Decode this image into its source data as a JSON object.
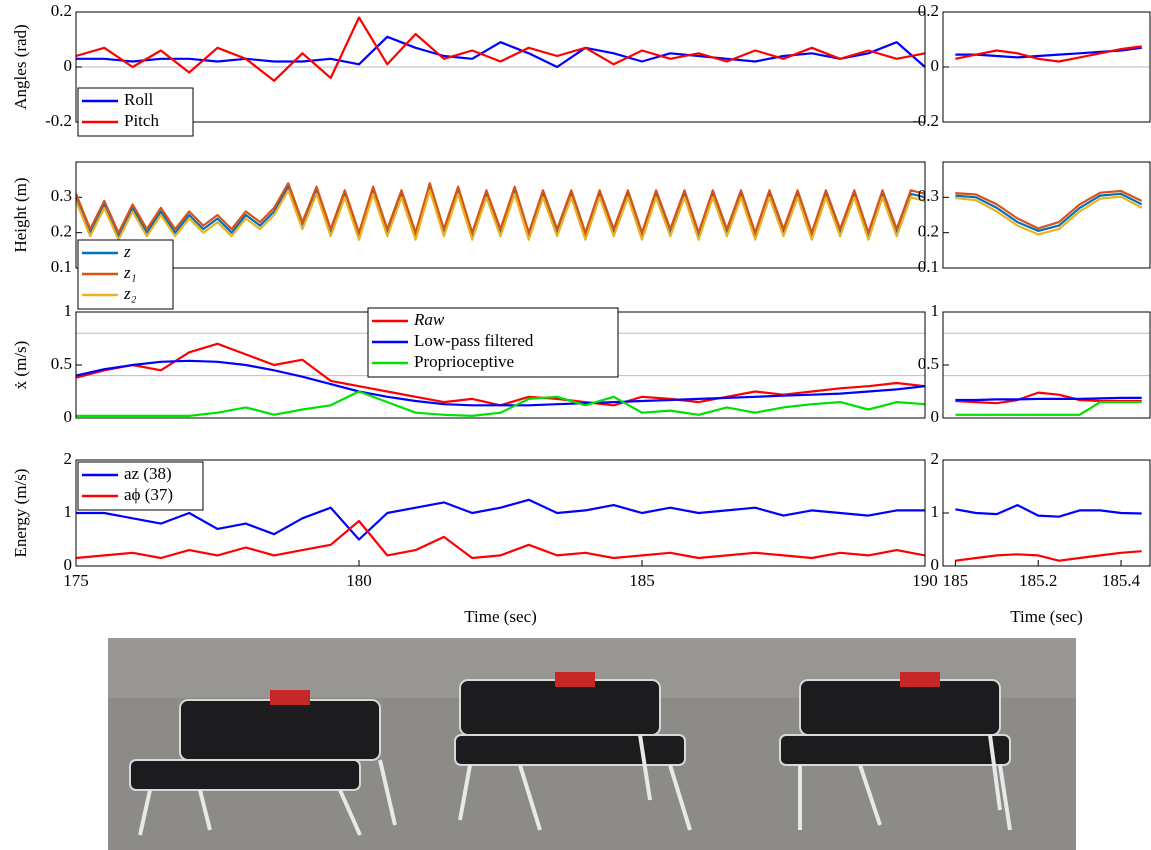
{
  "chart_data": [
    {
      "type": "line",
      "ylabel": "Angles (rad)",
      "xlim": [
        175,
        190
      ],
      "ylim": [
        -0.2,
        0.2
      ],
      "yticks": [
        -0.2,
        0,
        0.2
      ],
      "hlines": [
        0
      ],
      "legend": "lower left",
      "x": [
        175,
        175.5,
        176,
        176.5,
        177,
        177.5,
        178,
        178.5,
        179,
        179.5,
        180,
        180.5,
        181,
        181.5,
        182,
        182.5,
        183,
        183.5,
        184,
        184.5,
        185,
        185.5,
        186,
        186.5,
        187,
        187.5,
        188,
        188.5,
        189,
        189.5,
        190
      ],
      "series": [
        {
          "name": "Roll",
          "color": "#0000ff",
          "values": [
            0.03,
            0.03,
            0.02,
            0.03,
            0.03,
            0.02,
            0.03,
            0.02,
            0.02,
            0.03,
            0.01,
            0.11,
            0.07,
            0.04,
            0.03,
            0.09,
            0.05,
            0.0,
            0.07,
            0.05,
            0.02,
            0.05,
            0.04,
            0.03,
            0.02,
            0.04,
            0.05,
            0.03,
            0.05,
            0.09,
            0.0
          ]
        },
        {
          "name": "Pitch",
          "color": "#ff0000",
          "values": [
            0.04,
            0.07,
            0.0,
            0.06,
            -0.02,
            0.07,
            0.03,
            -0.05,
            0.05,
            -0.04,
            0.18,
            0.01,
            0.12,
            0.03,
            0.06,
            0.02,
            0.07,
            0.04,
            0.07,
            0.01,
            0.06,
            0.03,
            0.05,
            0.02,
            0.06,
            0.03,
            0.07,
            0.03,
            0.06,
            0.03,
            0.05
          ]
        }
      ]
    },
    {
      "type": "line",
      "xlim": [
        184.97,
        185.47
      ],
      "ylim": [
        -0.2,
        0.2
      ],
      "yticks": [
        -0.2,
        0,
        0.2
      ],
      "hlines": [
        0
      ],
      "x": [
        185,
        185.05,
        185.1,
        185.15,
        185.2,
        185.25,
        185.3,
        185.35,
        185.4,
        185.45
      ],
      "series": [
        {
          "color": "#0000ff",
          "values": [
            0.045,
            0.045,
            0.04,
            0.035,
            0.04,
            0.045,
            0.05,
            0.055,
            0.06,
            0.07
          ]
        },
        {
          "color": "#ff0000",
          "values": [
            0.03,
            0.045,
            0.06,
            0.05,
            0.03,
            0.02,
            0.035,
            0.05,
            0.065,
            0.075
          ]
        }
      ]
    },
    {
      "type": "line",
      "ylabel": "Height (m)",
      "xlim": [
        175,
        190
      ],
      "ylim": [
        0.1,
        0.4
      ],
      "yticks": [
        0.1,
        0.2,
        0.3
      ],
      "legend": "lower left",
      "x": [
        175,
        175.25,
        175.5,
        175.75,
        176,
        176.25,
        176.5,
        176.75,
        177,
        177.25,
        177.5,
        177.75,
        178,
        178.25,
        178.5,
        178.75,
        179,
        179.25,
        179.5,
        179.75,
        180,
        180.25,
        180.5,
        180.75,
        181,
        181.25,
        181.5,
        181.75,
        182,
        182.25,
        182.5,
        182.75,
        183,
        183.25,
        183.5,
        183.75,
        184,
        184.25,
        184.5,
        184.75,
        185,
        185.25,
        185.5,
        185.75,
        186,
        186.25,
        186.5,
        186.75,
        187,
        187.25,
        187.5,
        187.75,
        188,
        188.25,
        188.5,
        188.75,
        189,
        189.25,
        189.5,
        189.75,
        190
      ],
      "series": [
        {
          "name": "z",
          "color": "#0072bd",
          "values": [
            0.3,
            0.2,
            0.28,
            0.19,
            0.27,
            0.2,
            0.26,
            0.2,
            0.25,
            0.21,
            0.24,
            0.2,
            0.25,
            0.22,
            0.26,
            0.33,
            0.22,
            0.32,
            0.2,
            0.31,
            0.19,
            0.32,
            0.2,
            0.31,
            0.19,
            0.33,
            0.2,
            0.32,
            0.19,
            0.31,
            0.2,
            0.32,
            0.19,
            0.31,
            0.2,
            0.31,
            0.19,
            0.31,
            0.2,
            0.31,
            0.19,
            0.31,
            0.2,
            0.31,
            0.19,
            0.31,
            0.2,
            0.31,
            0.19,
            0.31,
            0.2,
            0.31,
            0.19,
            0.31,
            0.2,
            0.31,
            0.19,
            0.31,
            0.2,
            0.31,
            0.3
          ]
        },
        {
          "name": "z₁",
          "color": "#d95319",
          "values": [
            0.31,
            0.21,
            0.29,
            0.2,
            0.28,
            0.21,
            0.27,
            0.21,
            0.26,
            0.22,
            0.25,
            0.21,
            0.26,
            0.23,
            0.27,
            0.34,
            0.23,
            0.33,
            0.21,
            0.32,
            0.2,
            0.33,
            0.21,
            0.32,
            0.2,
            0.34,
            0.21,
            0.33,
            0.2,
            0.32,
            0.21,
            0.33,
            0.2,
            0.32,
            0.21,
            0.32,
            0.2,
            0.32,
            0.21,
            0.32,
            0.2,
            0.32,
            0.21,
            0.32,
            0.2,
            0.32,
            0.21,
            0.32,
            0.2,
            0.32,
            0.21,
            0.32,
            0.2,
            0.32,
            0.21,
            0.32,
            0.2,
            0.32,
            0.21,
            0.32,
            0.31
          ]
        },
        {
          "name": "z₂",
          "color": "#edb120",
          "values": [
            0.29,
            0.19,
            0.27,
            0.18,
            0.26,
            0.19,
            0.25,
            0.19,
            0.24,
            0.2,
            0.23,
            0.19,
            0.24,
            0.21,
            0.25,
            0.32,
            0.21,
            0.31,
            0.19,
            0.3,
            0.18,
            0.31,
            0.19,
            0.3,
            0.18,
            0.32,
            0.19,
            0.31,
            0.18,
            0.3,
            0.19,
            0.31,
            0.18,
            0.3,
            0.19,
            0.3,
            0.18,
            0.3,
            0.19,
            0.3,
            0.18,
            0.3,
            0.19,
            0.3,
            0.18,
            0.3,
            0.19,
            0.3,
            0.18,
            0.3,
            0.19,
            0.3,
            0.18,
            0.3,
            0.19,
            0.3,
            0.18,
            0.3,
            0.19,
            0.3,
            0.29
          ]
        }
      ]
    },
    {
      "type": "line",
      "xlim": [
        184.97,
        185.47
      ],
      "ylim": [
        0.1,
        0.4
      ],
      "yticks": [
        0.1,
        0.2,
        0.3
      ],
      "x": [
        185,
        185.05,
        185.1,
        185.15,
        185.2,
        185.25,
        185.3,
        185.35,
        185.4,
        185.45
      ],
      "series": [
        {
          "color": "#0072bd",
          "values": [
            0.305,
            0.3,
            0.27,
            0.23,
            0.205,
            0.22,
            0.27,
            0.305,
            0.31,
            0.28
          ]
        },
        {
          "color": "#d95319",
          "values": [
            0.312,
            0.308,
            0.28,
            0.24,
            0.212,
            0.23,
            0.28,
            0.313,
            0.318,
            0.29
          ]
        },
        {
          "color": "#edb120",
          "values": [
            0.298,
            0.292,
            0.26,
            0.22,
            0.195,
            0.21,
            0.26,
            0.296,
            0.302,
            0.27
          ]
        }
      ]
    },
    {
      "type": "line",
      "ylabel": "ẋ (m/s)",
      "xlim": [
        175,
        190
      ],
      "ylim": [
        0,
        1
      ],
      "yticks": [
        0,
        0.5,
        1
      ],
      "hlines": [
        0.8,
        0.4
      ],
      "legend": "upper center",
      "x": [
        175,
        175.5,
        176,
        176.5,
        177,
        177.5,
        178,
        178.5,
        179,
        179.5,
        180,
        180.5,
        181,
        181.5,
        182,
        182.5,
        183,
        183.5,
        184,
        184.5,
        185,
        185.5,
        186,
        186.5,
        187,
        187.5,
        188,
        188.5,
        189,
        189.5,
        190
      ],
      "series": [
        {
          "name": "Raw",
          "color": "#ff0000",
          "values": [
            0.38,
            0.45,
            0.5,
            0.45,
            0.62,
            0.7,
            0.6,
            0.5,
            0.55,
            0.35,
            0.3,
            0.25,
            0.2,
            0.15,
            0.18,
            0.12,
            0.2,
            0.18,
            0.15,
            0.12,
            0.2,
            0.18,
            0.15,
            0.2,
            0.25,
            0.22,
            0.25,
            0.28,
            0.3,
            0.33,
            0.3
          ]
        },
        {
          "name": "Low-pass filtered",
          "color": "#0000ff",
          "values": [
            0.4,
            0.46,
            0.5,
            0.53,
            0.54,
            0.53,
            0.5,
            0.45,
            0.39,
            0.32,
            0.25,
            0.2,
            0.16,
            0.13,
            0.12,
            0.12,
            0.12,
            0.13,
            0.14,
            0.15,
            0.16,
            0.17,
            0.18,
            0.19,
            0.2,
            0.21,
            0.22,
            0.23,
            0.25,
            0.27,
            0.3
          ]
        },
        {
          "name": "Proprioceptive",
          "color": "#00e000",
          "values": [
            0.02,
            0.02,
            0.02,
            0.02,
            0.02,
            0.05,
            0.1,
            0.03,
            0.08,
            0.12,
            0.25,
            0.15,
            0.05,
            0.03,
            0.02,
            0.05,
            0.18,
            0.2,
            0.12,
            0.2,
            0.05,
            0.07,
            0.03,
            0.1,
            0.05,
            0.1,
            0.13,
            0.15,
            0.08,
            0.15,
            0.13
          ]
        }
      ]
    },
    {
      "type": "line",
      "xlim": [
        184.97,
        185.47
      ],
      "ylim": [
        0,
        1
      ],
      "yticks": [
        0,
        0.5,
        1
      ],
      "hlines": [
        0.8,
        0.4
      ],
      "x": [
        185,
        185.05,
        185.1,
        185.15,
        185.2,
        185.25,
        185.3,
        185.35,
        185.4,
        185.45
      ],
      "series": [
        {
          "color": "#ff0000",
          "values": [
            0.16,
            0.15,
            0.14,
            0.17,
            0.24,
            0.22,
            0.17,
            0.16,
            0.16,
            0.16
          ]
        },
        {
          "color": "#0000ff",
          "values": [
            0.17,
            0.17,
            0.175,
            0.175,
            0.18,
            0.18,
            0.18,
            0.185,
            0.19,
            0.19
          ]
        },
        {
          "color": "#00e000",
          "values": [
            0.03,
            0.03,
            0.03,
            0.03,
            0.03,
            0.03,
            0.03,
            0.15,
            0.15,
            0.15
          ]
        }
      ]
    },
    {
      "type": "line",
      "ylabel": "Energy (m/s)",
      "xlabel": "Time (sec)",
      "xlim": [
        175,
        190
      ],
      "xticks": [
        175,
        180,
        185,
        190
      ],
      "ylim": [
        0,
        2
      ],
      "yticks": [
        0,
        1,
        2
      ],
      "legend": "upper left",
      "x": [
        175,
        175.5,
        176,
        176.5,
        177,
        177.5,
        178,
        178.5,
        179,
        179.5,
        180,
        180.5,
        181,
        181.5,
        182,
        182.5,
        183,
        183.5,
        184,
        184.5,
        185,
        185.5,
        186,
        186.5,
        187,
        187.5,
        188,
        188.5,
        189,
        189.5,
        190
      ],
      "series": [
        {
          "name": "az (38)",
          "color": "#0000ff",
          "values": [
            1.0,
            1.0,
            0.9,
            0.8,
            1.0,
            0.7,
            0.8,
            0.6,
            0.9,
            1.1,
            0.5,
            1.0,
            1.1,
            1.2,
            1.0,
            1.1,
            1.25,
            1.0,
            1.05,
            1.15,
            1.0,
            1.1,
            1.0,
            1.05,
            1.1,
            0.95,
            1.05,
            1.0,
            0.95,
            1.05,
            1.05
          ]
        },
        {
          "name": "aϕ (37)",
          "color": "#ff0000",
          "values": [
            0.15,
            0.2,
            0.25,
            0.15,
            0.3,
            0.2,
            0.35,
            0.2,
            0.3,
            0.4,
            0.85,
            0.2,
            0.3,
            0.55,
            0.15,
            0.2,
            0.4,
            0.2,
            0.25,
            0.15,
            0.2,
            0.25,
            0.15,
            0.2,
            0.25,
            0.2,
            0.15,
            0.25,
            0.2,
            0.3,
            0.2
          ]
        }
      ]
    },
    {
      "type": "line",
      "xlabel": "Time (sec)",
      "xlim": [
        184.97,
        185.47
      ],
      "xticks": [
        185,
        185.2,
        185.4
      ],
      "ylim": [
        0,
        2
      ],
      "yticks": [
        0,
        1,
        2
      ],
      "x": [
        185,
        185.05,
        185.1,
        185.15,
        185.2,
        185.25,
        185.3,
        185.35,
        185.4,
        185.45
      ],
      "series": [
        {
          "color": "#0000ff",
          "values": [
            1.07,
            1.0,
            0.98,
            1.15,
            0.95,
            0.93,
            1.05,
            1.05,
            1.0,
            0.99
          ]
        },
        {
          "color": "#ff0000",
          "values": [
            0.1,
            0.15,
            0.2,
            0.22,
            0.2,
            0.1,
            0.15,
            0.2,
            0.25,
            0.28
          ]
        }
      ]
    }
  ]
}
